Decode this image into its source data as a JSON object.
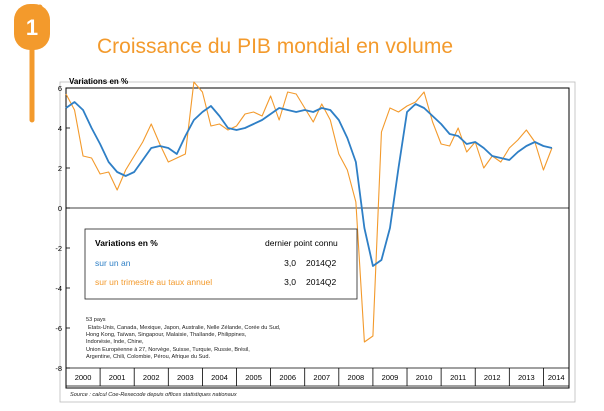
{
  "header": {
    "number": "1",
    "title": "Croissance du PIB mondial en volume",
    "accent_color": "#F39A2C"
  },
  "chart_data": {
    "type": "line",
    "ylabel": "Variations en %",
    "ylim": [
      -8,
      6
    ],
    "yticks": [
      -8,
      -6,
      -4,
      -2,
      0,
      2,
      4,
      6
    ],
    "xlim": [
      2000,
      2014.75
    ],
    "year_labels": [
      "2000",
      "2001",
      "2002",
      "2003",
      "2004",
      "2005",
      "2006",
      "2007",
      "2008",
      "2009",
      "2010",
      "2011",
      "2012",
      "2013",
      "2014"
    ],
    "grid": false,
    "series": [
      {
        "name": "sur un an",
        "color": "#2E7FC6",
        "points": [
          [
            2000.0,
            5.0
          ],
          [
            2000.25,
            5.3
          ],
          [
            2000.5,
            4.9
          ],
          [
            2000.75,
            4.0
          ],
          [
            2001.0,
            3.2
          ],
          [
            2001.25,
            2.3
          ],
          [
            2001.5,
            1.8
          ],
          [
            2001.75,
            1.6
          ],
          [
            2002.0,
            1.8
          ],
          [
            2002.25,
            2.4
          ],
          [
            2002.5,
            3.0
          ],
          [
            2002.75,
            3.1
          ],
          [
            2003.0,
            3.0
          ],
          [
            2003.25,
            2.7
          ],
          [
            2003.5,
            3.6
          ],
          [
            2003.75,
            4.4
          ],
          [
            2004.0,
            4.8
          ],
          [
            2004.25,
            5.1
          ],
          [
            2004.5,
            4.6
          ],
          [
            2004.75,
            4.0
          ],
          [
            2005.0,
            3.9
          ],
          [
            2005.25,
            4.0
          ],
          [
            2005.5,
            4.2
          ],
          [
            2005.75,
            4.4
          ],
          [
            2006.0,
            4.7
          ],
          [
            2006.25,
            5.0
          ],
          [
            2006.5,
            4.9
          ],
          [
            2006.75,
            4.8
          ],
          [
            2007.0,
            4.9
          ],
          [
            2007.25,
            4.8
          ],
          [
            2007.5,
            5.0
          ],
          [
            2007.75,
            4.9
          ],
          [
            2008.0,
            4.4
          ],
          [
            2008.25,
            3.5
          ],
          [
            2008.5,
            2.3
          ],
          [
            2008.75,
            -1.0
          ],
          [
            2009.0,
            -2.9
          ],
          [
            2009.25,
            -2.6
          ],
          [
            2009.5,
            -1.0
          ],
          [
            2009.75,
            2.0
          ],
          [
            2010.0,
            4.8
          ],
          [
            2010.25,
            5.2
          ],
          [
            2010.5,
            5.0
          ],
          [
            2010.75,
            4.6
          ],
          [
            2011.0,
            4.2
          ],
          [
            2011.25,
            3.7
          ],
          [
            2011.5,
            3.6
          ],
          [
            2011.75,
            3.2
          ],
          [
            2012.0,
            3.3
          ],
          [
            2012.25,
            3.0
          ],
          [
            2012.5,
            2.6
          ],
          [
            2012.75,
            2.5
          ],
          [
            2013.0,
            2.4
          ],
          [
            2013.25,
            2.8
          ],
          [
            2013.5,
            3.1
          ],
          [
            2013.75,
            3.3
          ],
          [
            2014.0,
            3.1
          ],
          [
            2014.25,
            3.0
          ]
        ]
      },
      {
        "name": "sur un trimestre au taux annuel",
        "color": "#F39A2C",
        "points": [
          [
            2000.0,
            5.7
          ],
          [
            2000.25,
            4.9
          ],
          [
            2000.5,
            2.6
          ],
          [
            2000.75,
            2.5
          ],
          [
            2001.0,
            1.7
          ],
          [
            2001.25,
            1.8
          ],
          [
            2001.5,
            0.9
          ],
          [
            2001.75,
            1.9
          ],
          [
            2002.0,
            2.6
          ],
          [
            2002.25,
            3.3
          ],
          [
            2002.5,
            4.2
          ],
          [
            2002.75,
            3.2
          ],
          [
            2003.0,
            2.3
          ],
          [
            2003.25,
            2.5
          ],
          [
            2003.5,
            2.7
          ],
          [
            2003.75,
            6.3
          ],
          [
            2004.0,
            5.8
          ],
          [
            2004.25,
            4.1
          ],
          [
            2004.5,
            4.2
          ],
          [
            2004.75,
            3.9
          ],
          [
            2005.0,
            4.1
          ],
          [
            2005.25,
            4.7
          ],
          [
            2005.5,
            4.8
          ],
          [
            2005.75,
            4.6
          ],
          [
            2006.0,
            5.6
          ],
          [
            2006.25,
            4.4
          ],
          [
            2006.5,
            5.8
          ],
          [
            2006.75,
            5.7
          ],
          [
            2007.0,
            5.0
          ],
          [
            2007.25,
            4.3
          ],
          [
            2007.5,
            5.2
          ],
          [
            2007.75,
            4.4
          ],
          [
            2008.0,
            2.7
          ],
          [
            2008.25,
            1.9
          ],
          [
            2008.5,
            0.3
          ],
          [
            2008.75,
            -6.7
          ],
          [
            2009.0,
            -6.4
          ],
          [
            2009.25,
            3.8
          ],
          [
            2009.5,
            5.0
          ],
          [
            2009.75,
            4.8
          ],
          [
            2010.0,
            5.1
          ],
          [
            2010.25,
            5.3
          ],
          [
            2010.5,
            5.8
          ],
          [
            2010.75,
            4.3
          ],
          [
            2011.0,
            3.2
          ],
          [
            2011.25,
            3.1
          ],
          [
            2011.5,
            4.0
          ],
          [
            2011.75,
            2.8
          ],
          [
            2012.0,
            3.3
          ],
          [
            2012.25,
            2.0
          ],
          [
            2012.5,
            2.6
          ],
          [
            2012.75,
            2.3
          ],
          [
            2013.0,
            3.0
          ],
          [
            2013.25,
            3.4
          ],
          [
            2013.5,
            3.9
          ],
          [
            2013.75,
            3.3
          ],
          [
            2014.0,
            1.9
          ],
          [
            2014.25,
            3.0
          ]
        ]
      }
    ],
    "legend_box": {
      "header": "Variations en %",
      "col_header": "dernier point connu",
      "rows": [
        {
          "label": "sur un an",
          "value": "3,0",
          "period": "2014Q2",
          "color": "#2E7FC6"
        },
        {
          "label": "sur un trimestre au taux annuel",
          "value": "3,0",
          "period": "2014Q2",
          "color": "#F39A2C"
        }
      ]
    },
    "note_lines": [
      "53 pays",
      "Etats-Unis, Canada, Mexique, Japon, Australie, Nelle Zélande, Corée du Sud,",
      "Hong Kong, Taïwan, Singapour, Malaisie, Thaïlande, Philippines,",
      "Indonésie, Inde, Chine,",
      "Union Européenne à 27, Norvège, Suisse, Turquie, Russie, Brésil,",
      "Argentine, Chili, Colombie, Pérou, Afrique du Sud."
    ],
    "source": "Source : calcul Coe-Rexecode depuis offices statistiques nationaux"
  }
}
